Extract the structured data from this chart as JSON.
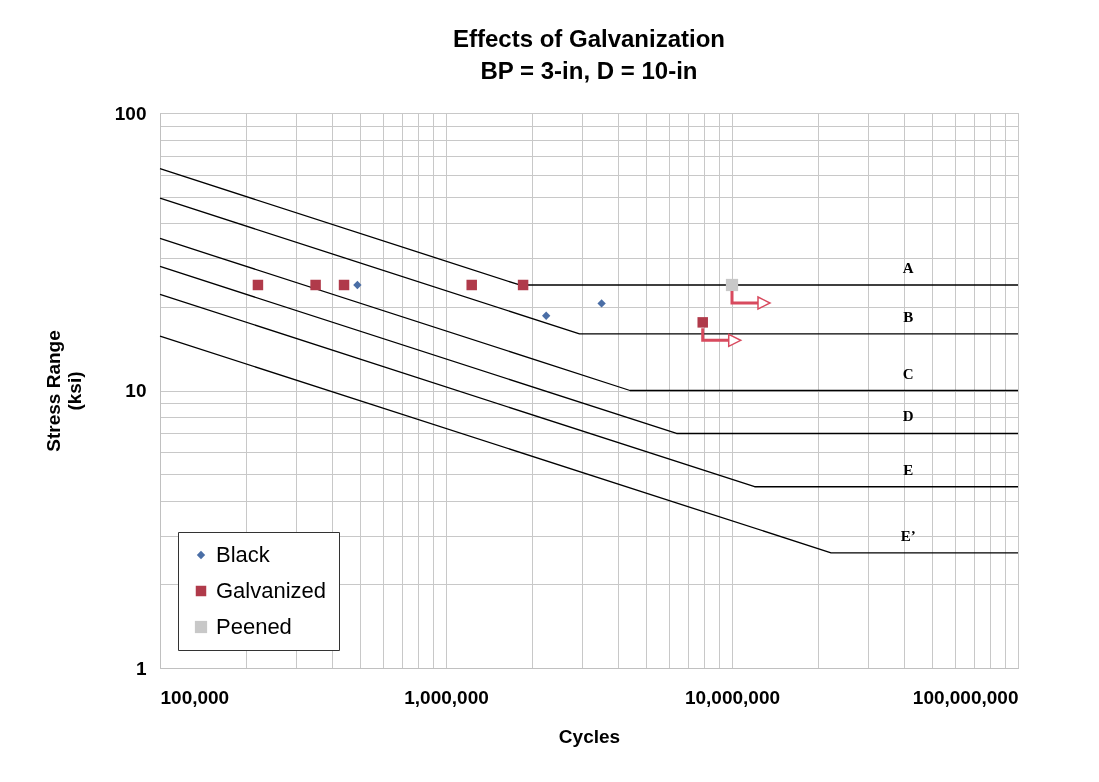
{
  "chart_data": {
    "type": "scatter",
    "title": "Effects of Galvanization",
    "subtitle": "BP = 3-in, D = 10-in",
    "xlabel": "Cycles",
    "ylabel": "Stress Range\n(ksi)",
    "log": "xy",
    "grid": true,
    "legend": "bottom left",
    "xlim": [
      100000,
      100000000
    ],
    "ylim": [
      1,
      100
    ],
    "xticks": [
      {
        "value": 100000,
        "label": "100,000"
      },
      {
        "value": 200000,
        "label": null
      },
      {
        "value": 300000,
        "label": null
      },
      {
        "value": 400000,
        "label": null
      },
      {
        "value": 500000,
        "label": null
      },
      {
        "value": 600000,
        "label": null
      },
      {
        "value": 700000,
        "label": null
      },
      {
        "value": 800000,
        "label": null
      },
      {
        "value": 900000,
        "label": null
      },
      {
        "value": 1000000,
        "label": "1,000,000"
      },
      {
        "value": 2000000,
        "label": null
      },
      {
        "value": 3000000,
        "label": null
      },
      {
        "value": 4000000,
        "label": null
      },
      {
        "value": 5000000,
        "label": null
      },
      {
        "value": 6000000,
        "label": null
      },
      {
        "value": 7000000,
        "label": null
      },
      {
        "value": 8000000,
        "label": null
      },
      {
        "value": 9000000,
        "label": null
      },
      {
        "value": 10000000,
        "label": "10,000,000"
      },
      {
        "value": 20000000,
        "label": null
      },
      {
        "value": 30000000,
        "label": null
      },
      {
        "value": 40000000,
        "label": null
      },
      {
        "value": 50000000,
        "label": null
      },
      {
        "value": 60000000,
        "label": null
      },
      {
        "value": 70000000,
        "label": null
      },
      {
        "value": 80000000,
        "label": null
      },
      {
        "value": 90000000,
        "label": null
      },
      {
        "value": 100000000,
        "label": "100,000,000"
      }
    ],
    "yticks": [
      1,
      {
        "value": 2,
        "label": null
      },
      {
        "value": 3,
        "label": null
      },
      {
        "value": 4,
        "label": null
      },
      {
        "value": 5,
        "label": null
      },
      {
        "value": 6,
        "label": null
      },
      {
        "value": 7,
        "label": null
      },
      {
        "value": 8,
        "label": null
      },
      {
        "value": 9,
        "label": null
      },
      10,
      {
        "value": 20,
        "label": null
      },
      {
        "value": 30,
        "label": null
      },
      {
        "value": 40,
        "label": null
      },
      {
        "value": 50,
        "label": null
      },
      {
        "value": 60,
        "label": null
      },
      {
        "value": 70,
        "label": null
      },
      {
        "value": 80,
        "label": null
      },
      {
        "value": 90,
        "label": null
      },
      100
    ],
    "series": [
      {
        "name": "Black",
        "marker": "diamond",
        "color": "#4a6ea6",
        "x": [
          490000,
          2240000,
          3500000
        ],
        "values": [
          24,
          18.6,
          20.6
        ]
      },
      {
        "name": "Galvanized",
        "marker": "square",
        "color": "#b03a4a",
        "x": [
          220000,
          350000,
          440000,
          1230000,
          1860000,
          7900000
        ],
        "values": [
          24,
          24,
          24,
          24,
          24,
          17.6
        ]
      },
      {
        "name": "Peened",
        "marker": "square",
        "color": "#c8c8c8",
        "x": [
          10000000
        ],
        "values": [
          24
        ]
      },
      {
        "type": "line",
        "color": "#000000",
        "x": [
          100000,
          1810000,
          100000000
        ],
        "values": [
          63,
          24,
          24
        ]
      },
      {
        "type": "line",
        "color": "#000000",
        "x": [
          100000,
          2930000,
          100000000
        ],
        "values": [
          49.3,
          16,
          16
        ]
      },
      {
        "type": "line",
        "color": "#000000",
        "x": [
          100000,
          4400000,
          100000000
        ],
        "values": [
          35.3,
          10,
          10
        ]
      },
      {
        "type": "line",
        "color": "#000000",
        "x": [
          100000,
          6400000,
          100000000
        ],
        "values": [
          28,
          7,
          7
        ]
      },
      {
        "type": "line",
        "color": "#000000",
        "x": [
          100000,
          12000000,
          100000000
        ],
        "values": [
          22.2,
          4.5,
          4.5
        ]
      },
      {
        "type": "line",
        "color": "#000000",
        "x": [
          100000,
          22200000,
          100000000
        ],
        "values": [
          15.7,
          2.6,
          2.6
        ]
      }
    ],
    "annotations": [
      "A",
      "B",
      "C",
      "D",
      "E",
      "E’"
    ]
  }
}
